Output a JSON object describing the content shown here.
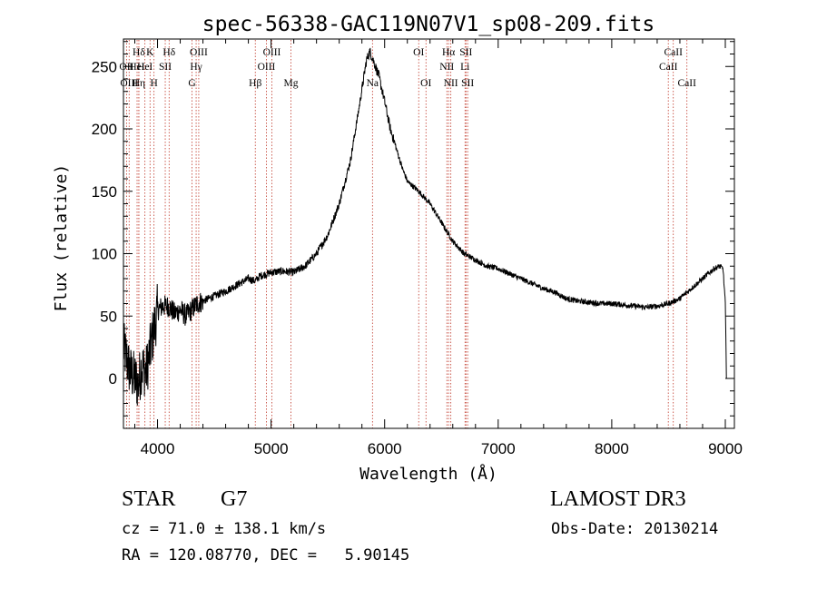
{
  "chart_data": {
    "type": "line",
    "title": "spec-56338-GAC119N07V1_sp08-209.fits",
    "xlabel": "Wavelength (Å)",
    "ylabel": "Flux (relative)",
    "xlim": [
      3700,
      9080
    ],
    "ylim": [
      -40,
      272
    ],
    "xticks": [
      4000,
      5000,
      6000,
      7000,
      8000,
      9000
    ],
    "yticks": [
      0,
      50,
      100,
      150,
      200,
      250
    ],
    "series": [
      {
        "name": "flux",
        "anchors": [
          [
            3700,
            25
          ],
          [
            3730,
            15
          ],
          [
            3760,
            5
          ],
          [
            3800,
            0
          ],
          [
            3830,
            -5
          ],
          [
            3860,
            10
          ],
          [
            3900,
            5
          ],
          [
            3940,
            25
          ],
          [
            3970,
            40
          ],
          [
            4000,
            55
          ],
          [
            4050,
            58
          ],
          [
            4100,
            58
          ],
          [
            4150,
            52
          ],
          [
            4200,
            55
          ],
          [
            4250,
            50
          ],
          [
            4300,
            55
          ],
          [
            4350,
            60
          ],
          [
            4400,
            62
          ],
          [
            4500,
            66
          ],
          [
            4600,
            70
          ],
          [
            4700,
            75
          ],
          [
            4800,
            80
          ],
          [
            4860,
            78
          ],
          [
            4900,
            82
          ],
          [
            5000,
            85
          ],
          [
            5100,
            86
          ],
          [
            5200,
            85
          ],
          [
            5300,
            90
          ],
          [
            5400,
            100
          ],
          [
            5500,
            115
          ],
          [
            5600,
            140
          ],
          [
            5700,
            175
          ],
          [
            5780,
            220
          ],
          [
            5840,
            255
          ],
          [
            5870,
            262
          ],
          [
            5900,
            255
          ],
          [
            5950,
            242
          ],
          [
            6000,
            222
          ],
          [
            6050,
            200
          ],
          [
            6100,
            185
          ],
          [
            6150,
            170
          ],
          [
            6200,
            158
          ],
          [
            6300,
            150
          ],
          [
            6400,
            140
          ],
          [
            6500,
            125
          ],
          [
            6600,
            110
          ],
          [
            6700,
            100
          ],
          [
            6800,
            95
          ],
          [
            6900,
            90
          ],
          [
            7000,
            88
          ],
          [
            7100,
            84
          ],
          [
            7200,
            80
          ],
          [
            7300,
            76
          ],
          [
            7400,
            72
          ],
          [
            7500,
            69
          ],
          [
            7600,
            64
          ],
          [
            7700,
            62
          ],
          [
            7800,
            61
          ],
          [
            7900,
            60
          ],
          [
            8000,
            60
          ],
          [
            8100,
            59
          ],
          [
            8200,
            58
          ],
          [
            8300,
            57
          ],
          [
            8400,
            58
          ],
          [
            8500,
            60
          ],
          [
            8600,
            64
          ],
          [
            8700,
            72
          ],
          [
            8800,
            80
          ],
          [
            8900,
            88
          ],
          [
            8950,
            90
          ],
          [
            8980,
            88
          ],
          [
            9000,
            60
          ],
          [
            9010,
            2
          ]
        ]
      }
    ],
    "lines": [
      {
        "label": "Hδ",
        "x": 3835,
        "row": 1
      },
      {
        "label": "OII",
        "x": 3727,
        "row": 2
      },
      {
        "label": "HeI",
        "x": 3820,
        "row": 2
      },
      {
        "label": "OIII",
        "x": 3750,
        "row": 3
      },
      {
        "label": "Hη",
        "x": 3835,
        "row": 3
      },
      {
        "label": "K",
        "x": 3934,
        "row": 1
      },
      {
        "label": "HeI",
        "x": 3889,
        "row": 2
      },
      {
        "label": "SII",
        "x": 4068,
        "row": 2
      },
      {
        "label": "H",
        "x": 3969,
        "row": 3
      },
      {
        "label": "Hδ",
        "x": 4102,
        "row": 1
      },
      {
        "label": "OIII",
        "x": 4363,
        "row": 1
      },
      {
        "label": "Hγ",
        "x": 4340,
        "row": 2
      },
      {
        "label": "G",
        "x": 4304,
        "row": 3
      },
      {
        "label": "OIII",
        "x": 5007,
        "row": 1
      },
      {
        "label": "OIII",
        "x": 4959,
        "row": 2
      },
      {
        "label": "Hβ",
        "x": 4861,
        "row": 3
      },
      {
        "label": "Mg",
        "x": 5175,
        "row": 3
      },
      {
        "label": "Na",
        "x": 5893,
        "row": 3
      },
      {
        "label": "OI",
        "x": 6300,
        "row": 1
      },
      {
        "label": "OI",
        "x": 6364,
        "row": 3
      },
      {
        "label": "Hα",
        "x": 6563,
        "row": 1
      },
      {
        "label": "SII",
        "x": 6716,
        "row": 1
      },
      {
        "label": "NII",
        "x": 6548,
        "row": 2
      },
      {
        "label": "Li",
        "x": 6708,
        "row": 2
      },
      {
        "label": "NII",
        "x": 6583,
        "row": 3
      },
      {
        "label": "SII",
        "x": 6731,
        "row": 3
      },
      {
        "label": "CaII",
        "x": 8542,
        "row": 1
      },
      {
        "label": "CaII",
        "x": 8498,
        "row": 2
      },
      {
        "label": "CaII",
        "x": 8662,
        "row": 3
      }
    ]
  },
  "info": {
    "object_class": "STAR",
    "subclass": "G7",
    "survey": "LAMOST DR3",
    "cz": "cz = 71.0 ± 138.1 km/s",
    "obs_date": "Obs-Date: 20130214",
    "coords": "RA = 120.08770, DEC =   5.90145"
  }
}
